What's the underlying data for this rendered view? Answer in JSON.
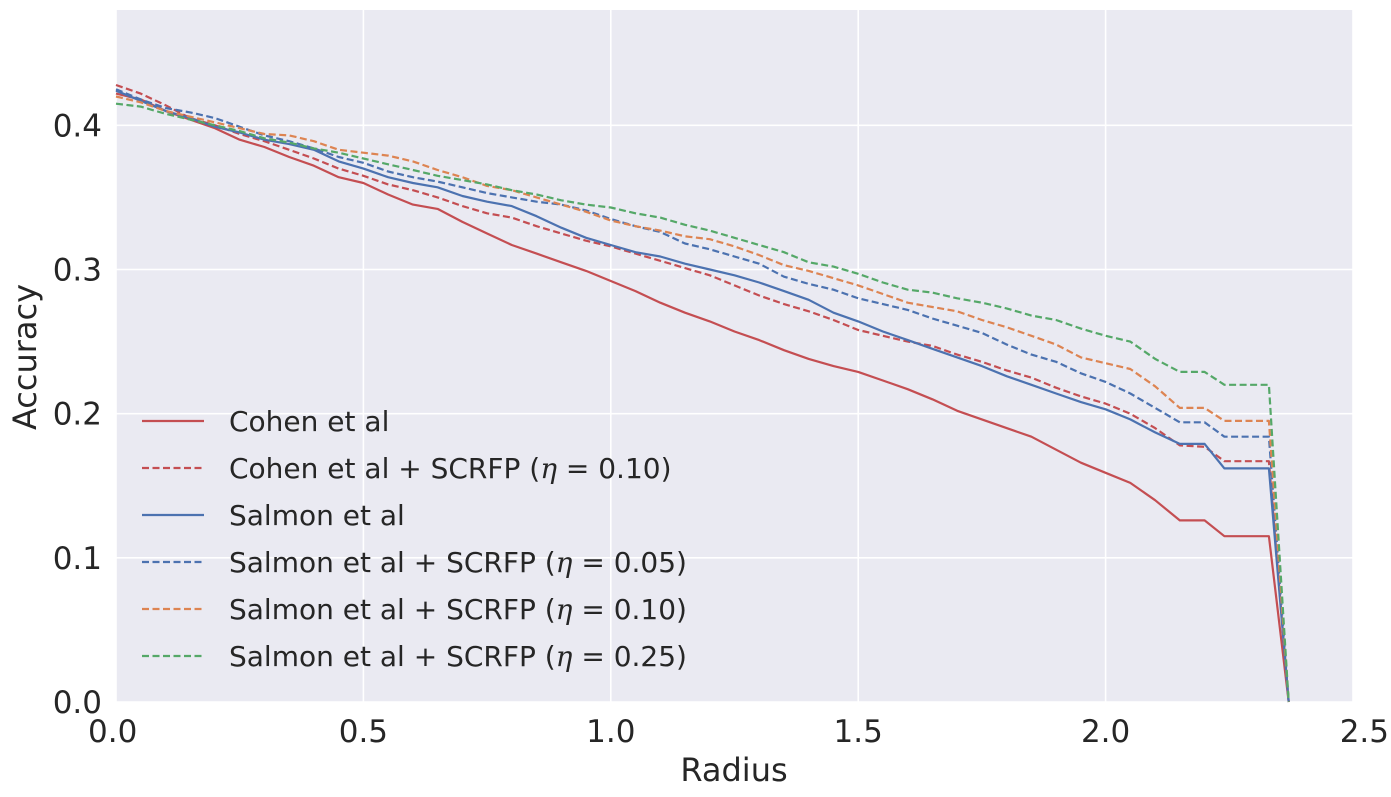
{
  "chart_data": {
    "type": "line",
    "title": "",
    "xlabel": "Radius",
    "ylabel": "Accuracy",
    "xlim": [
      0.0,
      2.5
    ],
    "ylim": [
      0.0,
      0.48
    ],
    "x_ticks": [
      0.0,
      0.5,
      1.0,
      1.5,
      2.0,
      2.5
    ],
    "x_tick_labels": [
      "0.0",
      "0.5",
      "1.0",
      "1.5",
      "2.0",
      "2.5"
    ],
    "y_ticks": [
      0.0,
      0.1,
      0.2,
      0.3,
      0.4
    ],
    "y_tick_labels": [
      "0.0",
      "0.1",
      "0.2",
      "0.3",
      "0.4"
    ],
    "grid": true,
    "style": "seaborn darkgrid",
    "legend_position": "lower-left",
    "series": [
      {
        "name": "Cohen et al",
        "color": "#c44e52",
        "dash": "solid",
        "points": [
          [
            0.0,
            0.422
          ],
          [
            0.05,
            0.418
          ],
          [
            0.1,
            0.41
          ],
          [
            0.15,
            0.404
          ],
          [
            0.2,
            0.398
          ],
          [
            0.25,
            0.39
          ],
          [
            0.3,
            0.385
          ],
          [
            0.35,
            0.378
          ],
          [
            0.4,
            0.372
          ],
          [
            0.45,
            0.364
          ],
          [
            0.5,
            0.36
          ],
          [
            0.55,
            0.352
          ],
          [
            0.6,
            0.345
          ],
          [
            0.65,
            0.342
          ],
          [
            0.7,
            0.333
          ],
          [
            0.75,
            0.325
          ],
          [
            0.8,
            0.317
          ],
          [
            0.85,
            0.311
          ],
          [
            0.9,
            0.305
          ],
          [
            0.95,
            0.299
          ],
          [
            1.0,
            0.292
          ],
          [
            1.05,
            0.285
          ],
          [
            1.1,
            0.277
          ],
          [
            1.15,
            0.27
          ],
          [
            1.2,
            0.264
          ],
          [
            1.25,
            0.257
          ],
          [
            1.3,
            0.251
          ],
          [
            1.35,
            0.244
          ],
          [
            1.4,
            0.238
          ],
          [
            1.45,
            0.233
          ],
          [
            1.5,
            0.229
          ],
          [
            1.55,
            0.223
          ],
          [
            1.6,
            0.217
          ],
          [
            1.65,
            0.21
          ],
          [
            1.7,
            0.202
          ],
          [
            1.75,
            0.196
          ],
          [
            1.8,
            0.19
          ],
          [
            1.85,
            0.184
          ],
          [
            1.9,
            0.175
          ],
          [
            1.95,
            0.166
          ],
          [
            2.0,
            0.159
          ],
          [
            2.05,
            0.152
          ],
          [
            2.1,
            0.14
          ],
          [
            2.15,
            0.126
          ],
          [
            2.2,
            0.126
          ],
          [
            2.24,
            0.115
          ],
          [
            2.33,
            0.115
          ],
          [
            2.37,
            0.0
          ]
        ]
      },
      {
        "name": "Cohen et al  + SCRFP (η = 0.10)",
        "color": "#c44e52",
        "dash": "dashed",
        "points": [
          [
            0.0,
            0.428
          ],
          [
            0.05,
            0.422
          ],
          [
            0.1,
            0.414
          ],
          [
            0.15,
            0.405
          ],
          [
            0.2,
            0.4
          ],
          [
            0.25,
            0.394
          ],
          [
            0.3,
            0.389
          ],
          [
            0.35,
            0.383
          ],
          [
            0.4,
            0.377
          ],
          [
            0.45,
            0.37
          ],
          [
            0.5,
            0.365
          ],
          [
            0.55,
            0.359
          ],
          [
            0.6,
            0.355
          ],
          [
            0.65,
            0.35
          ],
          [
            0.7,
            0.344
          ],
          [
            0.75,
            0.339
          ],
          [
            0.8,
            0.336
          ],
          [
            0.85,
            0.33
          ],
          [
            0.9,
            0.325
          ],
          [
            0.95,
            0.32
          ],
          [
            1.0,
            0.316
          ],
          [
            1.05,
            0.311
          ],
          [
            1.1,
            0.306
          ],
          [
            1.15,
            0.301
          ],
          [
            1.2,
            0.296
          ],
          [
            1.25,
            0.289
          ],
          [
            1.3,
            0.282
          ],
          [
            1.35,
            0.276
          ],
          [
            1.4,
            0.271
          ],
          [
            1.45,
            0.265
          ],
          [
            1.5,
            0.258
          ],
          [
            1.55,
            0.254
          ],
          [
            1.6,
            0.25
          ],
          [
            1.65,
            0.247
          ],
          [
            1.7,
            0.241
          ],
          [
            1.75,
            0.236
          ],
          [
            1.8,
            0.23
          ],
          [
            1.85,
            0.225
          ],
          [
            1.9,
            0.218
          ],
          [
            1.95,
            0.212
          ],
          [
            2.0,
            0.207
          ],
          [
            2.05,
            0.2
          ],
          [
            2.1,
            0.19
          ],
          [
            2.15,
            0.178
          ],
          [
            2.2,
            0.177
          ],
          [
            2.24,
            0.167
          ],
          [
            2.33,
            0.167
          ],
          [
            2.37,
            0.0
          ]
        ]
      },
      {
        "name": "Salmon et al",
        "color": "#4c72b0",
        "dash": "solid",
        "points": [
          [
            0.0,
            0.424
          ],
          [
            0.05,
            0.417
          ],
          [
            0.1,
            0.41
          ],
          [
            0.15,
            0.405
          ],
          [
            0.2,
            0.399
          ],
          [
            0.25,
            0.395
          ],
          [
            0.3,
            0.39
          ],
          [
            0.35,
            0.387
          ],
          [
            0.4,
            0.383
          ],
          [
            0.45,
            0.375
          ],
          [
            0.5,
            0.37
          ],
          [
            0.55,
            0.364
          ],
          [
            0.6,
            0.36
          ],
          [
            0.65,
            0.357
          ],
          [
            0.7,
            0.351
          ],
          [
            0.75,
            0.347
          ],
          [
            0.8,
            0.344
          ],
          [
            0.85,
            0.337
          ],
          [
            0.9,
            0.329
          ],
          [
            0.95,
            0.322
          ],
          [
            1.0,
            0.317
          ],
          [
            1.05,
            0.312
          ],
          [
            1.1,
            0.309
          ],
          [
            1.15,
            0.304
          ],
          [
            1.2,
            0.3
          ],
          [
            1.25,
            0.296
          ],
          [
            1.3,
            0.291
          ],
          [
            1.35,
            0.285
          ],
          [
            1.4,
            0.279
          ],
          [
            1.45,
            0.27
          ],
          [
            1.5,
            0.264
          ],
          [
            1.55,
            0.257
          ],
          [
            1.6,
            0.251
          ],
          [
            1.65,
            0.245
          ],
          [
            1.7,
            0.239
          ],
          [
            1.75,
            0.233
          ],
          [
            1.8,
            0.226
          ],
          [
            1.85,
            0.22
          ],
          [
            1.9,
            0.214
          ],
          [
            1.95,
            0.208
          ],
          [
            2.0,
            0.203
          ],
          [
            2.05,
            0.196
          ],
          [
            2.1,
            0.187
          ],
          [
            2.15,
            0.179
          ],
          [
            2.2,
            0.179
          ],
          [
            2.24,
            0.162
          ],
          [
            2.33,
            0.162
          ],
          [
            2.37,
            0.0
          ]
        ]
      },
      {
        "name": "Salmon et al + SCRFP (η = 0.05)",
        "color": "#4c72b0",
        "dash": "dashed",
        "points": [
          [
            0.0,
            0.425
          ],
          [
            0.05,
            0.418
          ],
          [
            0.1,
            0.412
          ],
          [
            0.15,
            0.409
          ],
          [
            0.2,
            0.405
          ],
          [
            0.25,
            0.399
          ],
          [
            0.3,
            0.393
          ],
          [
            0.35,
            0.389
          ],
          [
            0.4,
            0.384
          ],
          [
            0.45,
            0.378
          ],
          [
            0.5,
            0.374
          ],
          [
            0.55,
            0.368
          ],
          [
            0.6,
            0.364
          ],
          [
            0.65,
            0.361
          ],
          [
            0.7,
            0.357
          ],
          [
            0.75,
            0.353
          ],
          [
            0.8,
            0.35
          ],
          [
            0.85,
            0.347
          ],
          [
            0.9,
            0.345
          ],
          [
            0.95,
            0.341
          ],
          [
            1.0,
            0.335
          ],
          [
            1.05,
            0.33
          ],
          [
            1.1,
            0.326
          ],
          [
            1.15,
            0.318
          ],
          [
            1.2,
            0.314
          ],
          [
            1.25,
            0.309
          ],
          [
            1.3,
            0.304
          ],
          [
            1.35,
            0.295
          ],
          [
            1.4,
            0.29
          ],
          [
            1.45,
            0.286
          ],
          [
            1.5,
            0.28
          ],
          [
            1.55,
            0.276
          ],
          [
            1.6,
            0.272
          ],
          [
            1.65,
            0.266
          ],
          [
            1.7,
            0.261
          ],
          [
            1.75,
            0.256
          ],
          [
            1.8,
            0.248
          ],
          [
            1.85,
            0.241
          ],
          [
            1.9,
            0.236
          ],
          [
            1.95,
            0.228
          ],
          [
            2.0,
            0.222
          ],
          [
            2.05,
            0.214
          ],
          [
            2.1,
            0.204
          ],
          [
            2.15,
            0.194
          ],
          [
            2.2,
            0.194
          ],
          [
            2.24,
            0.184
          ],
          [
            2.33,
            0.184
          ],
          [
            2.37,
            0.0
          ]
        ]
      },
      {
        "name": "Salmon et al + SCRFP (η = 0.10)",
        "color": "#dd8452",
        "dash": "dashed",
        "points": [
          [
            0.0,
            0.42
          ],
          [
            0.05,
            0.416
          ],
          [
            0.1,
            0.41
          ],
          [
            0.15,
            0.406
          ],
          [
            0.2,
            0.402
          ],
          [
            0.25,
            0.398
          ],
          [
            0.3,
            0.394
          ],
          [
            0.35,
            0.393
          ],
          [
            0.4,
            0.389
          ],
          [
            0.45,
            0.383
          ],
          [
            0.5,
            0.381
          ],
          [
            0.55,
            0.379
          ],
          [
            0.6,
            0.375
          ],
          [
            0.65,
            0.369
          ],
          [
            0.7,
            0.364
          ],
          [
            0.75,
            0.358
          ],
          [
            0.8,
            0.355
          ],
          [
            0.85,
            0.35
          ],
          [
            0.9,
            0.345
          ],
          [
            0.95,
            0.34
          ],
          [
            1.0,
            0.334
          ],
          [
            1.05,
            0.33
          ],
          [
            1.1,
            0.327
          ],
          [
            1.15,
            0.323
          ],
          [
            1.2,
            0.321
          ],
          [
            1.25,
            0.316
          ],
          [
            1.3,
            0.31
          ],
          [
            1.35,
            0.303
          ],
          [
            1.4,
            0.299
          ],
          [
            1.45,
            0.294
          ],
          [
            1.5,
            0.289
          ],
          [
            1.55,
            0.283
          ],
          [
            1.6,
            0.277
          ],
          [
            1.65,
            0.274
          ],
          [
            1.7,
            0.271
          ],
          [
            1.75,
            0.265
          ],
          [
            1.8,
            0.26
          ],
          [
            1.85,
            0.254
          ],
          [
            1.9,
            0.248
          ],
          [
            1.95,
            0.239
          ],
          [
            2.0,
            0.235
          ],
          [
            2.05,
            0.231
          ],
          [
            2.1,
            0.219
          ],
          [
            2.15,
            0.204
          ],
          [
            2.2,
            0.204
          ],
          [
            2.24,
            0.195
          ],
          [
            2.33,
            0.195
          ],
          [
            2.37,
            0.0
          ]
        ]
      },
      {
        "name": "Salmon et al + SCRFP (η = 0.25)",
        "color": "#55a868",
        "dash": "dashed",
        "points": [
          [
            0.0,
            0.415
          ],
          [
            0.05,
            0.413
          ],
          [
            0.1,
            0.408
          ],
          [
            0.15,
            0.404
          ],
          [
            0.2,
            0.4
          ],
          [
            0.25,
            0.396
          ],
          [
            0.3,
            0.391
          ],
          [
            0.35,
            0.388
          ],
          [
            0.4,
            0.384
          ],
          [
            0.45,
            0.381
          ],
          [
            0.5,
            0.377
          ],
          [
            0.55,
            0.373
          ],
          [
            0.6,
            0.369
          ],
          [
            0.65,
            0.365
          ],
          [
            0.7,
            0.362
          ],
          [
            0.75,
            0.359
          ],
          [
            0.8,
            0.355
          ],
          [
            0.85,
            0.352
          ],
          [
            0.9,
            0.348
          ],
          [
            0.95,
            0.345
          ],
          [
            1.0,
            0.343
          ],
          [
            1.05,
            0.339
          ],
          [
            1.1,
            0.336
          ],
          [
            1.15,
            0.331
          ],
          [
            1.2,
            0.327
          ],
          [
            1.25,
            0.322
          ],
          [
            1.3,
            0.317
          ],
          [
            1.35,
            0.312
          ],
          [
            1.4,
            0.305
          ],
          [
            1.45,
            0.302
          ],
          [
            1.5,
            0.297
          ],
          [
            1.55,
            0.291
          ],
          [
            1.6,
            0.286
          ],
          [
            1.65,
            0.284
          ],
          [
            1.7,
            0.28
          ],
          [
            1.75,
            0.277
          ],
          [
            1.8,
            0.273
          ],
          [
            1.85,
            0.268
          ],
          [
            1.9,
            0.265
          ],
          [
            1.95,
            0.259
          ],
          [
            2.0,
            0.254
          ],
          [
            2.05,
            0.25
          ],
          [
            2.1,
            0.238
          ],
          [
            2.15,
            0.229
          ],
          [
            2.2,
            0.229
          ],
          [
            2.24,
            0.22
          ],
          [
            2.33,
            0.22
          ],
          [
            2.37,
            0.0
          ]
        ]
      }
    ]
  },
  "legend": [
    {
      "prefix": "Cohen et al",
      "eta": ""
    },
    {
      "prefix": "Cohen et al  + SCRFP (",
      "eta": "0.10"
    },
    {
      "prefix": "Salmon et al",
      "eta": ""
    },
    {
      "prefix": "Salmon et al + SCRFP (",
      "eta": "0.05"
    },
    {
      "prefix": "Salmon et al + SCRFP (",
      "eta": "0.10"
    },
    {
      "prefix": "Salmon et al + SCRFP (",
      "eta": "0.25"
    }
  ],
  "math": {
    "eta_symbol": "η",
    "equals": " = ",
    "close": ")"
  }
}
